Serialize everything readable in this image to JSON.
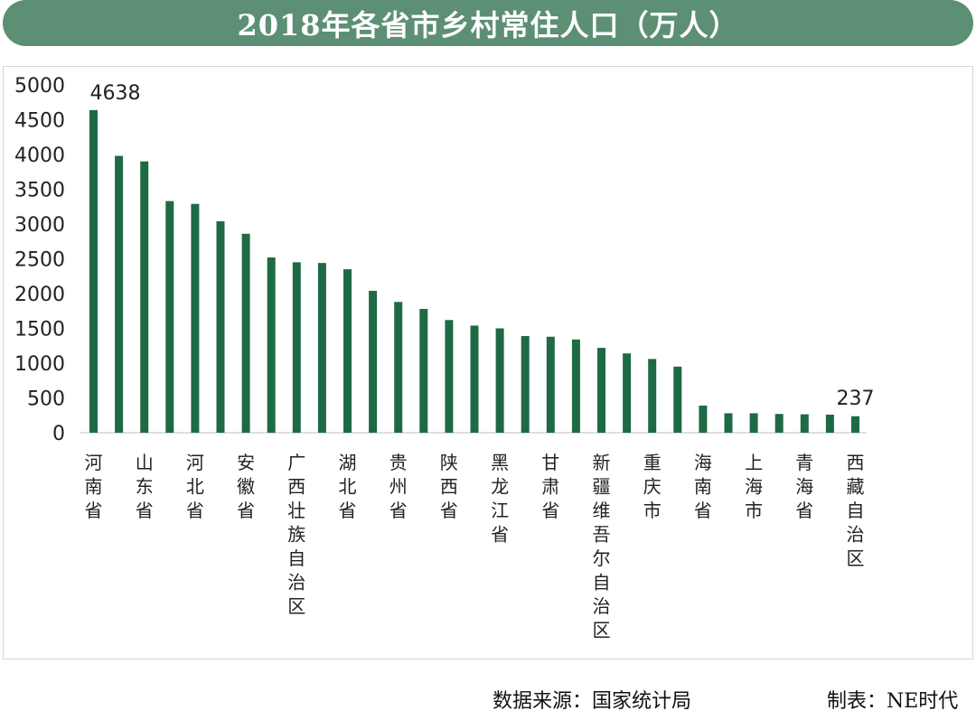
{
  "title": "2018年各省市乡村常住人口（万人）",
  "footer": {
    "source": "数据来源：国家统计局",
    "credit": "制表：NE时代"
  },
  "colors": {
    "title_bg": "#5d8f74",
    "bar": "#1e6a45"
  },
  "chart_data": {
    "type": "bar",
    "ylim": [
      0,
      5000
    ],
    "yticks": [
      0,
      500,
      1000,
      1500,
      2000,
      2500,
      3000,
      3500,
      4000,
      4500,
      5000
    ],
    "grid": false,
    "labeled_categories": [
      "河南省",
      "山东省",
      "河北省",
      "安徽省",
      "广西壮族自治区",
      "湖北省",
      "贵州省",
      "陕西省",
      "黑龙江省",
      "甘肃省",
      "新疆维吾尔自治区",
      "重庆市",
      "海南省",
      "上海市",
      "青海省",
      "西藏自治区"
    ],
    "values": [
      4638,
      3980,
      3900,
      3330,
      3290,
      3040,
      2860,
      2520,
      2450,
      2440,
      2350,
      2040,
      1880,
      1780,
      1620,
      1540,
      1500,
      1390,
      1380,
      1340,
      1220,
      1140,
      1060,
      950,
      390,
      280,
      280,
      270,
      265,
      260,
      237
    ],
    "data_labels": [
      {
        "index": 0,
        "text": "4638"
      },
      {
        "index": 30,
        "text": "237"
      }
    ]
  }
}
